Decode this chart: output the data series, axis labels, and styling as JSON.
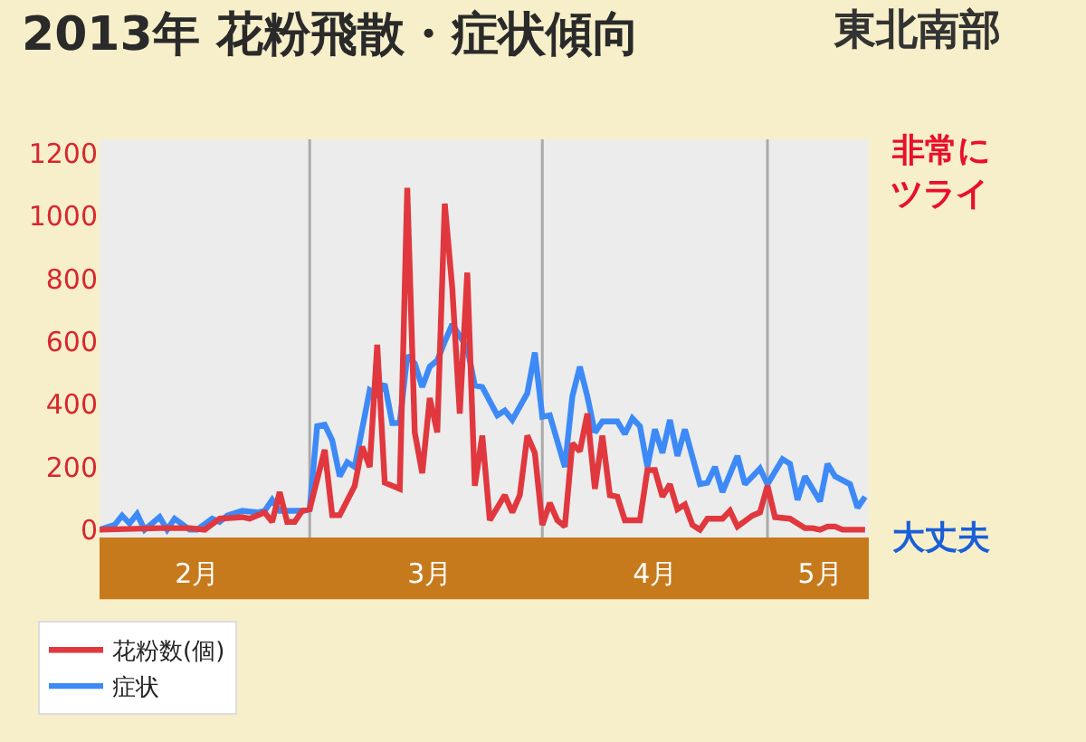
{
  "chart_data": {
    "type": "line",
    "title": "2013年 花粉飛散・症状傾向",
    "subtitle": "東北南部",
    "annotations": [
      "非常に",
      "ツライ",
      "大丈夫"
    ],
    "xlim": [
      "2013-02-01",
      "2013-05-14T12:00"
    ],
    "xticks": [
      {
        "value": "2013-02-14",
        "label": "2月"
      },
      {
        "value": "2013-03-17",
        "label": "3月"
      },
      {
        "value": "2013-04-16",
        "label": "4月"
      },
      {
        "value": "2013-05-08",
        "label": "5月"
      }
    ],
    "ylim": [
      -25,
      1245
    ],
    "yticks": [
      0,
      200,
      400,
      600,
      800,
      1000,
      1200
    ],
    "grid": false,
    "legend": "bottom left",
    "line_style": "solid",
    "ref_lines": [
      {
        "axis": "x",
        "value": "2013-03-01",
        "color": "#aaaaaa"
      },
      {
        "axis": "x",
        "value": "2013-04-01",
        "color": "#aaaaaa"
      },
      {
        "axis": "x",
        "value": "2013-05-01",
        "color": "#aaaaaa"
      }
    ],
    "series": [
      {
        "name": "花粉数(個)",
        "color": "#e0383e",
        "x": [
          "2013-02-01",
          "2013-02-09",
          "2013-02-13",
          "2013-02-15",
          "2013-02-17",
          "2013-02-20",
          "2013-02-21",
          "2013-02-23",
          "2013-02-24",
          "2013-02-25",
          "2013-02-26",
          "2013-02-27",
          "2013-02-28",
          "2013-03-01",
          "2013-03-03",
          "2013-03-04",
          "2013-03-05",
          "2013-03-07",
          "2013-03-08",
          "2013-03-09",
          "2013-03-10",
          "2013-03-11",
          "2013-03-13",
          "2013-03-14",
          "2013-03-15",
          "2013-03-16",
          "2013-03-17",
          "2013-03-18",
          "2013-03-19",
          "2013-03-20",
          "2013-03-21",
          "2013-03-22",
          "2013-03-23",
          "2013-03-24",
          "2013-03-25",
          "2013-03-27",
          "2013-03-28",
          "2013-03-29",
          "2013-03-30",
          "2013-03-31",
          "2013-04-01",
          "2013-04-02",
          "2013-04-03",
          "2013-04-04",
          "2013-04-05",
          "2013-04-06",
          "2013-04-07",
          "2013-04-08",
          "2013-04-09",
          "2013-04-10",
          "2013-04-11",
          "2013-04-12",
          "2013-04-14",
          "2013-04-15",
          "2013-04-16",
          "2013-04-17",
          "2013-04-18",
          "2013-04-19",
          "2013-04-20",
          "2013-04-21",
          "2013-04-22",
          "2013-04-23",
          "2013-04-25",
          "2013-04-26",
          "2013-04-27",
          "2013-04-29",
          "2013-04-30",
          "2013-05-01",
          "2013-05-02",
          "2013-05-04",
          "2013-05-06",
          "2013-05-07",
          "2013-05-08",
          "2013-05-09",
          "2013-05-10",
          "2013-05-11",
          "2013-05-13",
          "2013-05-14"
        ],
        "values": [
          0,
          5,
          5,
          0,
          35,
          40,
          35,
          55,
          25,
          120,
          25,
          25,
          60,
          65,
          255,
          46,
          46,
          140,
          265,
          200,
          590,
          150,
          130,
          1090,
          310,
          180,
          420,
          310,
          1040,
          770,
          370,
          820,
          140,
          300,
          30,
          110,
          55,
          110,
          300,
          245,
          15,
          85,
          30,
          10,
          275,
          250,
          370,
          130,
          300,
          110,
          105,
          30,
          30,
          190,
          190,
          105,
          145,
          65,
          80,
          15,
          0,
          35,
          35,
          60,
          10,
          45,
          55,
          140,
          40,
          35,
          5,
          5,
          0,
          10,
          10,
          0,
          0,
          0
        ]
      },
      {
        "name": "症状",
        "color": "#3d8af7",
        "x": [
          "2013-02-01",
          "2013-02-03",
          "2013-02-04",
          "2013-02-05",
          "2013-02-06",
          "2013-02-07",
          "2013-02-09",
          "2013-02-10",
          "2013-02-11",
          "2013-02-13",
          "2013-02-14",
          "2013-02-16",
          "2013-02-17",
          "2013-02-18",
          "2013-02-20",
          "2013-02-22",
          "2013-02-23",
          "2013-02-24",
          "2013-02-25",
          "2013-02-28",
          "2013-03-01",
          "2013-03-02",
          "2013-03-03",
          "2013-03-04",
          "2013-03-05",
          "2013-03-06",
          "2013-03-07",
          "2013-03-09",
          "2013-03-10",
          "2013-03-11",
          "2013-03-12",
          "2013-03-13",
          "2013-03-14",
          "2013-03-15",
          "2013-03-16",
          "2013-03-17",
          "2013-03-18",
          "2013-03-19",
          "2013-03-20",
          "2013-03-22",
          "2013-03-23",
          "2013-03-24",
          "2013-03-26",
          "2013-03-27",
          "2013-03-28",
          "2013-03-30",
          "2013-03-31",
          "2013-04-01",
          "2013-04-02",
          "2013-04-04",
          "2013-04-05",
          "2013-04-06",
          "2013-04-07",
          "2013-04-08",
          "2013-04-09",
          "2013-04-11",
          "2013-04-12",
          "2013-04-13",
          "2013-04-14",
          "2013-04-15",
          "2013-04-16",
          "2013-04-17",
          "2013-04-18",
          "2013-04-19",
          "2013-04-20",
          "2013-04-22",
          "2013-04-23",
          "2013-04-24",
          "2013-04-25",
          "2013-04-27",
          "2013-04-28",
          "2013-04-30",
          "2013-05-01",
          "2013-05-03",
          "2013-05-04",
          "2013-05-05",
          "2013-05-06",
          "2013-05-08",
          "2013-05-09",
          "2013-05-10",
          "2013-05-12",
          "2013-05-13",
          "2013-05-14"
        ],
        "values": [
          0,
          15,
          45,
          20,
          50,
          0,
          40,
          0,
          35,
          0,
          0,
          35,
          25,
          45,
          60,
          55,
          60,
          95,
          60,
          60,
          65,
          330,
          335,
          285,
          170,
          215,
          200,
          445,
          430,
          465,
          340,
          340,
          555,
          530,
          455,
          520,
          540,
          600,
          655,
          580,
          460,
          455,
          365,
          380,
          350,
          435,
          565,
          360,
          365,
          200,
          425,
          520,
          425,
          310,
          345,
          345,
          305,
          355,
          330,
          200,
          320,
          245,
          350,
          235,
          320,
          145,
          150,
          200,
          120,
          235,
          145,
          195,
          145,
          225,
          210,
          95,
          170,
          90,
          210,
          170,
          145,
          70,
          105
        ]
      }
    ]
  }
}
